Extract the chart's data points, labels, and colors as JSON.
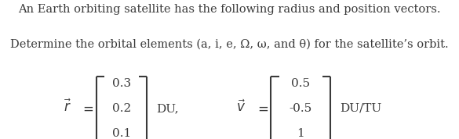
{
  "line1": "An Earth orbiting satellite has the following radius and position vectors.",
  "line2": "Determine the orbital elements (a, i, e, Ω, ω, and θ) for the satellite’s orbit.",
  "r_vec": [
    "0.3",
    "0.2",
    "0.1"
  ],
  "r_unit": "DU,",
  "v_vec": [
    "0.5",
    "-0.5",
    "1"
  ],
  "v_unit": "DU/TU",
  "bg_color": "#ffffff",
  "text_color": "#3a3a3a",
  "font_size_text": 10.5,
  "font_size_matrix": 11.0
}
